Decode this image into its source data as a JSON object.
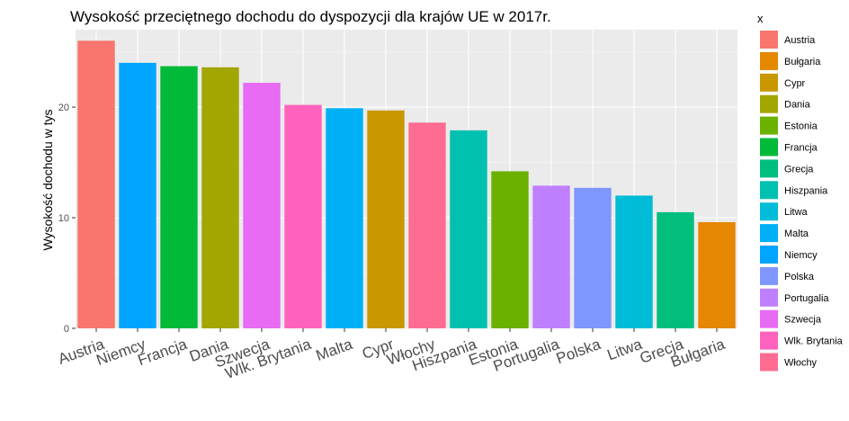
{
  "chart_data": {
    "type": "bar",
    "title": "Wysokość przeciętnego dochodu do dyspozycji dla krajów UE w 2017r.",
    "xlabel": "",
    "ylabel": "Wysokość dochodu w tys",
    "ylim": [
      0,
      27
    ],
    "yticks": [
      0,
      10,
      20
    ],
    "grid": true,
    "legend_position": "right",
    "legend_title": "x",
    "categories": [
      "Austria",
      "Niemcy",
      "Francja",
      "Dania",
      "Szwecja",
      "Wlk. Brytania",
      "Malta",
      "Cypr",
      "Włochy",
      "Hiszpania",
      "Estonia",
      "Portugalia",
      "Polska",
      "Litwa",
      "Grecja",
      "Bułgaria"
    ],
    "values": [
      26.0,
      24.0,
      23.7,
      23.6,
      22.2,
      20.2,
      19.9,
      19.7,
      18.6,
      17.9,
      14.2,
      12.9,
      12.7,
      12.0,
      10.5,
      9.6
    ],
    "legend": [
      {
        "label": "Austria",
        "color": "#F8766D"
      },
      {
        "label": "Bułgaria",
        "color": "#E58700"
      },
      {
        "label": "Cypr",
        "color": "#C99800"
      },
      {
        "label": "Dania",
        "color": "#A3A500"
      },
      {
        "label": "Estonia",
        "color": "#6BB100"
      },
      {
        "label": "Francja",
        "color": "#00BA38"
      },
      {
        "label": "Grecja",
        "color": "#00BF7D"
      },
      {
        "label": "Hiszpania",
        "color": "#00C0AF"
      },
      {
        "label": "Litwa",
        "color": "#00BCD8"
      },
      {
        "label": "Malta",
        "color": "#00B0F6"
      },
      {
        "label": "Niemcy",
        "color": "#00A5FF"
      },
      {
        "label": "Polska",
        "color": "#7F96FF"
      },
      {
        "label": "Portugalia",
        "color": "#BF80FF"
      },
      {
        "label": "Szwecja",
        "color": "#E76BF3"
      },
      {
        "label": "Wlk. Brytania",
        "color": "#FF62BC"
      },
      {
        "label": "Włochy",
        "color": "#FF6C91"
      }
    ]
  }
}
